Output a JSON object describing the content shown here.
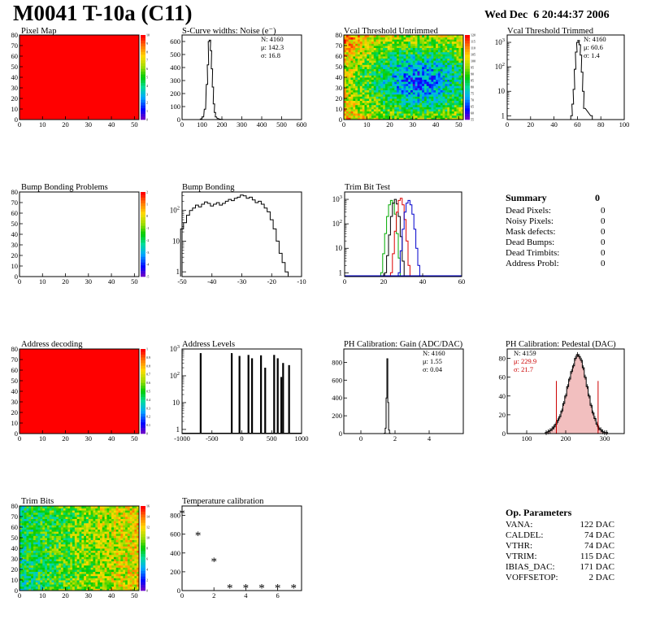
{
  "header": {
    "title": "M0041 T-10a (C11)",
    "timestamp": "Wed Dec  6 20:44:37 2006"
  },
  "summary": {
    "title": "Summary",
    "total": "0",
    "rows": [
      {
        "label": "Dead Pixels:",
        "value": "0"
      },
      {
        "label": "Noisy Pixels:",
        "value": "0"
      },
      {
        "label": "Mask defects:",
        "value": "0"
      },
      {
        "label": "Dead Bumps:",
        "value": "0"
      },
      {
        "label": "Dead Trimbits:",
        "value": "0"
      },
      {
        "label": "Address Probl:",
        "value": "0"
      }
    ]
  },
  "op_params": {
    "title": "Op. Parameters",
    "rows": [
      {
        "label": "VANA:",
        "value": "122 DAC"
      },
      {
        "label": "CALDEL:",
        "value": "74 DAC"
      },
      {
        "label": "VTHR:",
        "value": "74 DAC"
      },
      {
        "label": "VTRIM:",
        "value": "115 DAC"
      },
      {
        "label": "IBIAS_DAC:",
        "value": "171 DAC"
      },
      {
        "label": "VOFFSETOP:",
        "value": "2 DAC"
      }
    ]
  },
  "chart_data": [
    {
      "id": "pixel-map",
      "type": "heatmap",
      "title": "Pixel Map",
      "xlim": [
        0,
        52
      ],
      "ylim": [
        0,
        80
      ],
      "xticks": [
        "0",
        "10",
        "20",
        "30",
        "40",
        "50"
      ],
      "yticks": [
        "0",
        "10",
        "20",
        "30",
        "40",
        "50",
        "60",
        "70",
        "80"
      ],
      "fill": "uniform",
      "value": 10,
      "zlim": [
        0,
        10
      ],
      "zticks": [
        "0",
        "1",
        "2",
        "3",
        "4",
        "5",
        "6",
        "7",
        "8",
        "9",
        "10"
      ]
    },
    {
      "id": "scurve-widths",
      "type": "histogram",
      "title": "S-Curve widths: Noise (e⁻)",
      "xlim": [
        0,
        600
      ],
      "ylim": [
        0,
        650
      ],
      "xticks": [
        "0",
        "100",
        "200",
        "300",
        "400",
        "500",
        "600"
      ],
      "yticks": [
        "0",
        "100",
        "200",
        "300",
        "400",
        "500",
        "600"
      ],
      "stats": [
        "N: 4160",
        "μ: 142.3",
        "σ: 16.8"
      ],
      "series": [
        {
          "color": "#000000",
          "x": [
            95,
            105,
            115,
            125,
            130,
            135,
            140,
            145,
            150,
            155,
            160,
            165,
            170,
            180,
            190,
            200
          ],
          "y": [
            5,
            20,
            80,
            270,
            420,
            600,
            610,
            530,
            390,
            250,
            120,
            55,
            20,
            8,
            3,
            1
          ]
        }
      ]
    },
    {
      "id": "vcal-untrimmed",
      "type": "heatmap",
      "title": "Vcal Threshold Untrimmed",
      "xlim": [
        0,
        52
      ],
      "ylim": [
        0,
        80
      ],
      "xticks": [
        "0",
        "10",
        "20",
        "30",
        "40",
        "50"
      ],
      "yticks": [
        "0",
        "10",
        "20",
        "30",
        "40",
        "50",
        "60",
        "70",
        "80"
      ],
      "fill": "random-gradient",
      "zlim": [
        55,
        120
      ],
      "zticks": [
        "55",
        "60",
        "65",
        "70",
        "75",
        "80",
        "85",
        "90",
        "95",
        "100",
        "105",
        "110",
        "115",
        "120"
      ]
    },
    {
      "id": "vcal-trimmed",
      "type": "histogram",
      "title": "Vcal Threshold Trimmed",
      "log": true,
      "xlim": [
        0,
        100
      ],
      "ylim": [
        0.7,
        2000
      ],
      "xticks": [
        "0",
        "20",
        "40",
        "60",
        "80",
        "100"
      ],
      "stats": [
        "N: 4160",
        "μ: 60.6",
        "σ:  1.4"
      ],
      "series": [
        {
          "color": "#000000",
          "x": [
            55,
            56,
            57,
            58,
            59,
            60,
            61,
            62,
            63,
            64,
            65,
            66,
            72
          ],
          "y": [
            1,
            3,
            12,
            80,
            400,
            1000,
            1200,
            800,
            300,
            60,
            10,
            2,
            1
          ]
        }
      ]
    },
    {
      "id": "bump-bonding-problems",
      "type": "heatmap",
      "title": "Bump Bonding Problems",
      "xlim": [
        0,
        52
      ],
      "ylim": [
        0,
        80
      ],
      "xticks": [
        "0",
        "10",
        "20",
        "30",
        "40",
        "50"
      ],
      "yticks": [
        "0",
        "10",
        "20",
        "30",
        "40",
        "50",
        "60",
        "70",
        "80"
      ],
      "fill": "empty",
      "zlim": [
        -5,
        2
      ],
      "zticks": [
        "-5",
        "-4",
        "-3",
        "-2",
        "-1",
        "0",
        "1",
        "2"
      ]
    },
    {
      "id": "bump-bonding",
      "type": "histogram",
      "title": "Bump Bonding",
      "log": true,
      "xlim": [
        -50,
        -10
      ],
      "ylim": [
        0.7,
        400
      ],
      "xticks": [
        "-50",
        "-40",
        "-30",
        "-20",
        "-10"
      ],
      "series": [
        {
          "color": "#000000",
          "x": [
            -50,
            -49,
            -48,
            -47,
            -46,
            -45,
            -44,
            -43,
            -42,
            -41,
            -40,
            -39,
            -38,
            -37,
            -36,
            -35,
            -34,
            -33,
            -32,
            -31,
            -30,
            -29,
            -28,
            -27,
            -26,
            -25,
            -24,
            -23,
            -22,
            -21,
            -20,
            -19,
            -18,
            -17,
            -16,
            -15
          ],
          "y": [
            25,
            40,
            70,
            100,
            120,
            150,
            130,
            160,
            190,
            170,
            140,
            160,
            180,
            150,
            170,
            200,
            230,
            210,
            250,
            270,
            320,
            300,
            250,
            270,
            220,
            180,
            200,
            160,
            120,
            90,
            50,
            25,
            10,
            4,
            2,
            1
          ]
        }
      ]
    },
    {
      "id": "trim-bit-test",
      "type": "histogram",
      "title": "Trim Bit Test",
      "log": true,
      "xlim": [
        0,
        60
      ],
      "ylim": [
        0.7,
        2000
      ],
      "xticks": [
        "0",
        "20",
        "40",
        "60"
      ],
      "series": [
        {
          "color": "#00aa00",
          "x": [
            19,
            20,
            21,
            22,
            23,
            24,
            25,
            26,
            27,
            28
          ],
          "y": [
            1,
            6,
            40,
            200,
            600,
            900,
            700,
            250,
            40,
            4
          ]
        },
        {
          "color": "#000000",
          "x": [
            21,
            22,
            23,
            24,
            25,
            26,
            27,
            28,
            29,
            30
          ],
          "y": [
            1,
            5,
            35,
            200,
            700,
            1000,
            650,
            200,
            30,
            3
          ]
        },
        {
          "color": "#dd0000",
          "x": [
            24,
            25,
            26,
            27,
            28,
            29,
            30,
            31,
            32,
            33
          ],
          "y": [
            1,
            6,
            50,
            300,
            900,
            1100,
            600,
            150,
            20,
            2
          ]
        },
        {
          "color": "#0000cc",
          "x": [
            28,
            29,
            30,
            31,
            32,
            33,
            34,
            35,
            36,
            37,
            38
          ],
          "y": [
            1,
            8,
            60,
            300,
            700,
            900,
            600,
            250,
            60,
            10,
            2
          ]
        }
      ]
    },
    {
      "id": "address-decoding",
      "type": "heatmap",
      "title": "Address decoding",
      "xlim": [
        0,
        52
      ],
      "ylim": [
        0,
        80
      ],
      "xticks": [
        "0",
        "10",
        "20",
        "30",
        "40",
        "50"
      ],
      "yticks": [
        "0",
        "10",
        "20",
        "30",
        "40",
        "50",
        "60",
        "70",
        "80"
      ],
      "fill": "uniform",
      "value": 1,
      "zlim": [
        0,
        1
      ],
      "zticks": [
        "0",
        "0.1",
        "0.2",
        "0.3",
        "0.4",
        "0.5",
        "0.6",
        "0.7",
        "0.8",
        "0.9",
        "1"
      ]
    },
    {
      "id": "address-levels",
      "type": "histogram",
      "title": "Address Levels",
      "log": true,
      "xlim": [
        -1000,
        1000
      ],
      "ylim": [
        0.7,
        1000
      ],
      "xticks": [
        "-1000",
        "-500",
        "0",
        "500",
        "1000"
      ],
      "series": [
        {
          "color": "#000000",
          "style": "spikes",
          "x": [
            -690,
            -170,
            -40,
            110,
            170,
            320,
            390,
            540,
            600,
            660,
            690,
            790
          ],
          "y": [
            700,
            700,
            550,
            600,
            450,
            580,
            200,
            600,
            450,
            90,
            300,
            250
          ]
        }
      ]
    },
    {
      "id": "ph-gain",
      "type": "histogram",
      "title": "PH Calibration: Gain (ADC/DAC)",
      "xlim": [
        -1,
        6
      ],
      "ylim": [
        0,
        950
      ],
      "xticks": [
        "0",
        "2",
        "4"
      ],
      "yticks": [
        "0",
        "200",
        "400",
        "600",
        "800"
      ],
      "stats": [
        "N: 4160",
        "μ: 1.55",
        "σ: 0.04"
      ],
      "series": [
        {
          "color": "#000000",
          "x": [
            1.4,
            1.45,
            1.5,
            1.55,
            1.6,
            1.65,
            1.7
          ],
          "y": [
            5,
            60,
            400,
            840,
            350,
            40,
            3
          ]
        }
      ]
    },
    {
      "id": "ph-pedestal",
      "type": "histogram",
      "title": "PH Calibration: Pedestal (DAC)",
      "xlim": [
        50,
        350
      ],
      "ylim": [
        0,
        90
      ],
      "xticks": [
        "100",
        "200",
        "300"
      ],
      "yticks": [
        "0",
        "20",
        "40",
        "60",
        "80"
      ],
      "stats": [
        "N: 4159",
        "μ: 229.9",
        "σ: 21.7"
      ],
      "fit_lines": [
        176,
        283
      ],
      "series": [
        {
          "color": "#000000",
          "fill": "#cc0000",
          "x": [
            150,
            155,
            160,
            165,
            170,
            175,
            180,
            185,
            190,
            195,
            200,
            205,
            210,
            215,
            220,
            225,
            230,
            235,
            240,
            245,
            250,
            255,
            260,
            265,
            270,
            275,
            280,
            285,
            290,
            295,
            300,
            305
          ],
          "y": [
            1,
            2,
            3,
            5,
            7,
            10,
            14,
            18,
            24,
            32,
            40,
            50,
            58,
            66,
            72,
            80,
            84,
            82,
            78,
            70,
            60,
            50,
            40,
            30,
            22,
            16,
            10,
            6,
            4,
            2,
            1,
            1
          ]
        }
      ]
    },
    {
      "id": "trim-bits",
      "type": "heatmap",
      "title": "Trim Bits",
      "xlim": [
        0,
        52
      ],
      "ylim": [
        0,
        80
      ],
      "xticks": [
        "0",
        "10",
        "20",
        "30",
        "40",
        "50"
      ],
      "yticks": [
        "0",
        "10",
        "20",
        "30",
        "40",
        "50",
        "60",
        "70",
        "80"
      ],
      "fill": "random-trim",
      "zlim": [
        0,
        16
      ],
      "zticks": [
        "0",
        "2",
        "4",
        "6",
        "8",
        "10",
        "12",
        "14",
        "16"
      ]
    },
    {
      "id": "temperature-calibration",
      "type": "scatter",
      "title": "Temperature calibration",
      "xlim": [
        0,
        7.5
      ],
      "ylim": [
        0,
        900
      ],
      "xticks": [
        "0",
        "2",
        "4",
        "6"
      ],
      "yticks": [
        "0",
        "200",
        "400",
        "600",
        "800"
      ],
      "marker": "*",
      "x": [
        0,
        1,
        2,
        3,
        4,
        5,
        6,
        7
      ],
      "y": [
        820,
        590,
        310,
        30,
        30,
        30,
        30,
        30
      ]
    }
  ]
}
